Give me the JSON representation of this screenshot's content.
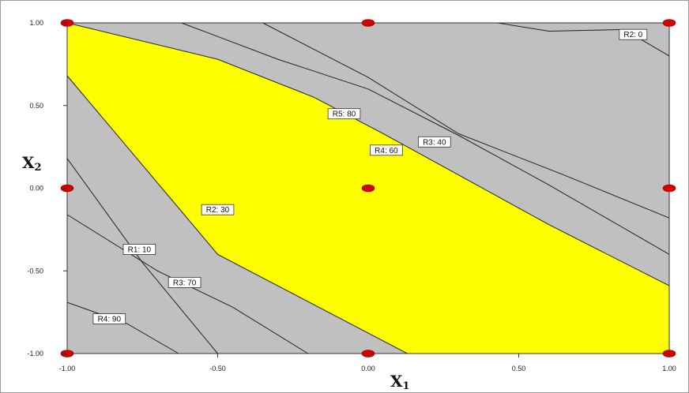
{
  "chart_data": {
    "type": "contour",
    "xlabel": "X",
    "xlabel_sub": "1",
    "ylabel": "X",
    "ylabel_sub": "2",
    "xlim": [
      -1,
      1
    ],
    "ylim": [
      -1,
      1
    ],
    "x_ticks": [
      "-1.00",
      "-0.50",
      "0.00",
      "0.50",
      "1.00"
    ],
    "y_ticks": [
      "1.00",
      "0.50",
      "0.00",
      "-0.50",
      "-1.00"
    ],
    "x_tick_values": [
      -1,
      -0.5,
      0,
      0.5,
      1
    ],
    "y_tick_values": [
      1,
      0.5,
      0,
      -0.5,
      -1
    ],
    "colors": {
      "background": "#c0c0c0",
      "feasible_region": "#ffff00",
      "contour": "#222222",
      "design_point": "#d40000"
    },
    "feasible_region": [
      {
        "x": -1.0,
        "y": 1.0
      },
      {
        "x": -0.5,
        "y": 0.78
      },
      {
        "x": -0.18,
        "y": 0.55
      },
      {
        "x": 0.05,
        "y": 0.33
      },
      {
        "x": 0.3,
        "y": 0.08
      },
      {
        "x": 0.6,
        "y": -0.22
      },
      {
        "x": 1.0,
        "y": -0.59
      },
      {
        "x": 1.0,
        "y": -1.0
      },
      {
        "x": 0.13,
        "y": -1.0
      },
      {
        "x": -0.5,
        "y": -0.4
      },
      {
        "x": -1.0,
        "y": 0.68
      }
    ],
    "contours": [
      {
        "label": "R5: 80",
        "points": [
          {
            "x": -1.0,
            "y": 1.0
          },
          {
            "x": -0.5,
            "y": 0.78
          },
          {
            "x": -0.18,
            "y": 0.55
          },
          {
            "x": 0.05,
            "y": 0.33
          },
          {
            "x": 0.3,
            "y": 0.08
          },
          {
            "x": 0.6,
            "y": -0.22
          },
          {
            "x": 1.0,
            "y": -0.59
          }
        ],
        "label_at": {
          "x": -0.08,
          "y": 0.45
        }
      },
      {
        "label": "R4: 60",
        "points": [
          {
            "x": -0.62,
            "y": 1.0
          },
          {
            "x": -0.3,
            "y": 0.78
          },
          {
            "x": 0.0,
            "y": 0.6
          },
          {
            "x": 0.3,
            "y": 0.32
          },
          {
            "x": 0.6,
            "y": 0.02
          },
          {
            "x": 1.0,
            "y": -0.4
          }
        ],
        "label_at": {
          "x": 0.06,
          "y": 0.23
        }
      },
      {
        "label": "R3: 40",
        "points": [
          {
            "x": -0.35,
            "y": 1.0
          },
          {
            "x": 0.0,
            "y": 0.67
          },
          {
            "x": 0.3,
            "y": 0.33
          },
          {
            "x": 0.65,
            "y": 0.08
          },
          {
            "x": 1.0,
            "y": -0.18
          }
        ],
        "label_at": {
          "x": 0.22,
          "y": 0.28
        }
      },
      {
        "label": "R2: 0",
        "points": [
          {
            "x": 0.43,
            "y": 1.0
          },
          {
            "x": 0.6,
            "y": 0.95
          },
          {
            "x": 0.85,
            "y": 0.96
          },
          {
            "x": 1.0,
            "y": 0.8
          }
        ],
        "label_at": {
          "x": 0.88,
          "y": 0.93
        }
      },
      {
        "label": "R2: 30",
        "points": [
          {
            "x": -1.0,
            "y": 0.68
          },
          {
            "x": -0.5,
            "y": -0.4
          },
          {
            "x": 0.13,
            "y": -1.0
          }
        ],
        "label_at": {
          "x": -0.5,
          "y": -0.13
        }
      },
      {
        "label": "R1: 10",
        "points": [
          {
            "x": -1.0,
            "y": 0.18
          },
          {
            "x": -0.75,
            "y": -0.45
          },
          {
            "x": -0.5,
            "y": -1.0
          }
        ],
        "label_at": {
          "x": -0.76,
          "y": -0.37
        }
      },
      {
        "label": "R3: 70",
        "points": [
          {
            "x": -1.0,
            "y": -0.16
          },
          {
            "x": -0.7,
            "y": -0.5
          },
          {
            "x": -0.45,
            "y": -0.72
          },
          {
            "x": -0.2,
            "y": -1.0
          }
        ],
        "label_at": {
          "x": -0.61,
          "y": -0.57
        }
      },
      {
        "label": "R4: 90",
        "points": [
          {
            "x": -1.0,
            "y": -0.69
          },
          {
            "x": -0.8,
            "y": -0.82
          },
          {
            "x": -0.63,
            "y": -1.0
          }
        ],
        "label_at": {
          "x": -0.86,
          "y": -0.79
        }
      }
    ],
    "design_points": [
      {
        "x": -1,
        "y": 1
      },
      {
        "x": 0,
        "y": 1
      },
      {
        "x": 1,
        "y": 1
      },
      {
        "x": -1,
        "y": 0
      },
      {
        "x": 0,
        "y": 0
      },
      {
        "x": 1,
        "y": 0
      },
      {
        "x": -1,
        "y": -1
      },
      {
        "x": 0,
        "y": -1
      },
      {
        "x": 1,
        "y": -1
      }
    ]
  }
}
